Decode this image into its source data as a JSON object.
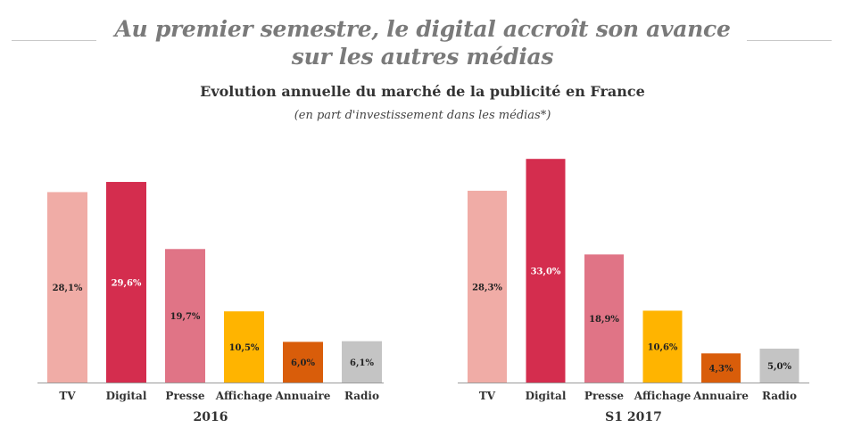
{
  "header": {
    "title": "Au premier semestre, le digital accroît son avance sur les autres médias",
    "subtitle": "Evolution annuelle du marché de la publicité en France",
    "note": "(en part d'investissement dans les médias*)"
  },
  "colors": {
    "TV": "#f0aca6",
    "Digital": "#d42d4e",
    "Presse": "#e07486",
    "Affichage": "#ffb400",
    "Annuaire": "#d95d0a",
    "Radio": "#c4c4c4"
  },
  "chart_data": [
    {
      "type": "bar",
      "title": "2016",
      "xlabel": "2016",
      "ylabel": "",
      "categories": [
        "TV",
        "Digital",
        "Presse",
        "Affichage",
        "Annuaire",
        "Radio"
      ],
      "values": [
        28.1,
        29.6,
        19.7,
        10.5,
        6.0,
        6.1
      ],
      "labels": [
        "28,1%",
        "29,6%",
        "19,7%",
        "10,5%",
        "6,0%",
        "6,1%"
      ],
      "ylim": [
        0,
        34
      ]
    },
    {
      "type": "bar",
      "title": "S1 2017",
      "xlabel": "S1 2017",
      "ylabel": "",
      "categories": [
        "TV",
        "Digital",
        "Presse",
        "Affichage",
        "Annuaire",
        "Radio"
      ],
      "values": [
        28.3,
        33.0,
        18.9,
        10.6,
        4.3,
        5.0
      ],
      "labels": [
        "28,3%",
        "33,0%",
        "18,9%",
        "10,6%",
        "4,3%",
        "5,0%"
      ],
      "ylim": [
        0,
        34
      ]
    }
  ]
}
